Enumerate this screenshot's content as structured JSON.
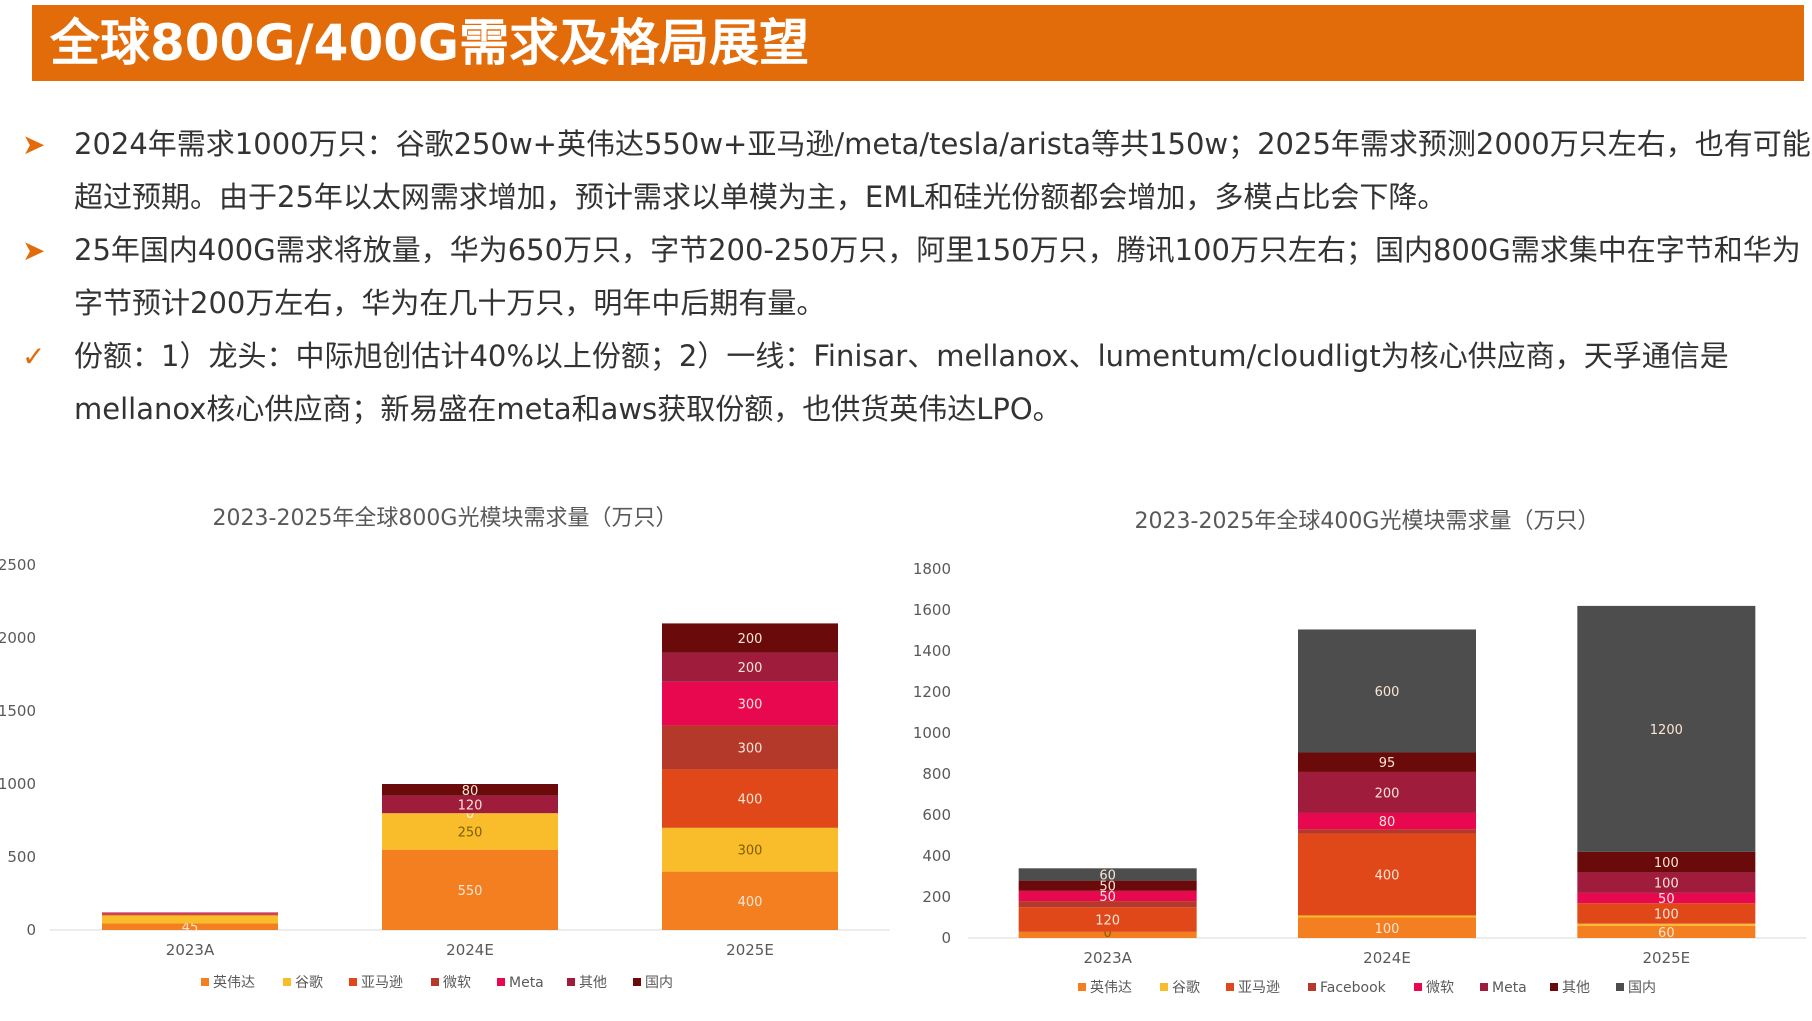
{
  "page_title": "全球800G/400G需求及格局展望",
  "bullets": [
    {
      "marker": "➤",
      "text": "2024年需求1000万只：谷歌250w+英伟达550w+亚马逊/meta/tesla/arista等共150w；2025年需求预测2000万只左右，也有可能超过预期。由于25年以太网需求增加，预计需求以单模为主，EML和硅光份额都会增加，多模占比会下降。"
    },
    {
      "marker": "➤",
      "text": "25年国内400G需求将放量，华为650万只，字节200-250万只，阿里150万只，腾讯100万只左右；国内800G需求集中在字节和华为字节预计200万左右，华为在几十万只，明年中后期有量。"
    },
    {
      "marker": "✓",
      "text": "份额：1）龙头：中际旭创估计40%以上份额；2）一线：Finisar、mellanox、lumentum/cloudligt为核心供应商，天孚通信是mellanox核心供应商；新易盛在meta和aws获取份额，也供货英伟达LPO。"
    }
  ],
  "chart_data": [
    {
      "type": "bar",
      "stacked": true,
      "title": "2023-2025年全球800G光模块需求量（万只）",
      "categories": [
        "2023A",
        "2024E",
        "2025E"
      ],
      "ylim": [
        0,
        2500
      ],
      "yticks": [
        0,
        500,
        1000,
        1500,
        2000,
        2500
      ],
      "legend_position": "bottom",
      "series": [
        {
          "name": "英伟达",
          "color": "#f47f20",
          "values": [
            45,
            550,
            400
          ],
          "labels": [
            "45",
            "550",
            "400"
          ]
        },
        {
          "name": "谷歌",
          "color": "#f9bd2b",
          "values": [
            55,
            250,
            300
          ],
          "labels": [
            "",
            "250",
            "300"
          ]
        },
        {
          "name": "亚马逊",
          "color": "#e0481a",
          "values": [
            5,
            0,
            400
          ],
          "labels": [
            "",
            "0",
            "400"
          ]
        },
        {
          "name": "微软",
          "color": "#b5392a",
          "values": [
            5,
            0,
            300
          ],
          "labels": [
            "",
            "0",
            "300"
          ]
        },
        {
          "name": "Meta",
          "color": "#e8084f",
          "values": [
            5,
            0,
            300
          ],
          "labels": [
            "",
            "0",
            "300"
          ]
        },
        {
          "name": "其他",
          "color": "#a01c3c",
          "values": [
            5,
            120,
            200
          ],
          "labels": [
            "",
            "120",
            "200"
          ]
        },
        {
          "name": "国内",
          "color": "#6b0a0a",
          "values": [
            0,
            80,
            200
          ],
          "labels": [
            "",
            "80",
            "200"
          ]
        }
      ]
    },
    {
      "type": "bar",
      "stacked": true,
      "title": "2023-2025年全球400G光模块需求量（万只）",
      "categories": [
        "2023A",
        "2024E",
        "2025E"
      ],
      "ylim": [
        0,
        1800
      ],
      "yticks": [
        0,
        200,
        400,
        600,
        800,
        1000,
        1200,
        1400,
        1600,
        1800
      ],
      "legend_position": "bottom",
      "series": [
        {
          "name": "英伟达",
          "color": "#f47f20",
          "values": [
            30,
            100,
            60
          ],
          "labels": [
            "",
            "100",
            "60"
          ]
        },
        {
          "name": "谷歌",
          "color": "#f9bd2b",
          "values": [
            0,
            10,
            10
          ],
          "labels": [
            "0",
            "",
            ""
          ]
        },
        {
          "name": "亚马逊",
          "color": "#e0481a",
          "values": [
            120,
            400,
            100
          ],
          "labels": [
            "120",
            "400",
            "100"
          ]
        },
        {
          "name": "Facebook",
          "color": "#b5392a",
          "values": [
            30,
            20,
            0
          ],
          "labels": [
            "",
            "",
            ""
          ]
        },
        {
          "name": "微软",
          "color": "#e8084f",
          "values": [
            50,
            80,
            50
          ],
          "labels": [
            "50",
            "80",
            "50"
          ]
        },
        {
          "name": "Meta",
          "color": "#a01c3c",
          "values": [
            0,
            200,
            100
          ],
          "labels": [
            "",
            "200",
            "100"
          ]
        },
        {
          "name": "其他",
          "color": "#6b0a0a",
          "values": [
            50,
            95,
            100
          ],
          "labels": [
            "50",
            "95",
            "100"
          ]
        },
        {
          "name": "国内",
          "color": "#4d4d4d",
          "values": [
            60,
            600,
            1200
          ],
          "labels": [
            "60",
            "600",
            "1200"
          ]
        }
      ]
    }
  ]
}
